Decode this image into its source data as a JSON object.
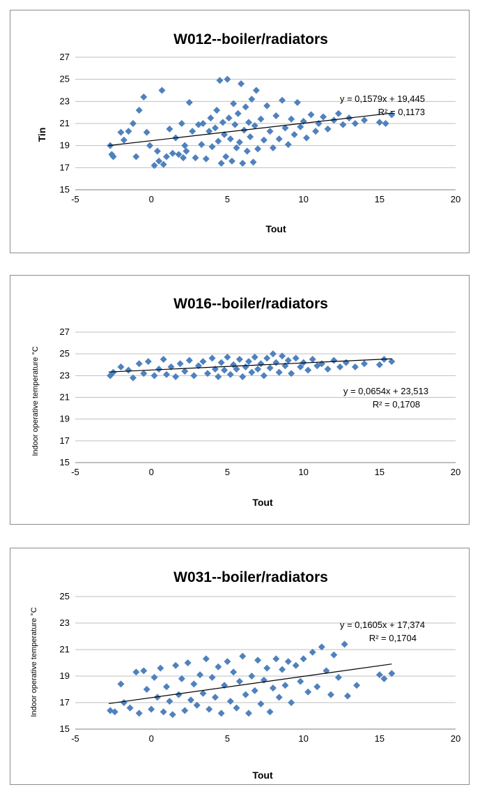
{
  "chart_data": [
    {
      "type": "scatter",
      "title": "W012--boiler/radiators",
      "xlabel": "Tout",
      "ylabel": "Tin",
      "xlim": [
        -5,
        20
      ],
      "ylim": [
        15,
        27
      ],
      "x_ticks": [
        "-5",
        "0",
        "5",
        "10",
        "15",
        "20"
      ],
      "y_ticks": [
        "15",
        "17",
        "19",
        "21",
        "23",
        "25",
        "27"
      ],
      "grid": "horizontal",
      "marker_color": "#4f81bd",
      "trendline": {
        "slope": 0.1579,
        "intercept": 19.445,
        "x_range": [
          -2.8,
          15.8
        ]
      },
      "equation": "y = 0,1579x + 19,445",
      "r_squared": "R² = 0,1173",
      "points": [
        [
          -2.7,
          19
        ],
        [
          -2.6,
          18.2
        ],
        [
          -2.5,
          18
        ],
        [
          -2,
          20.2
        ],
        [
          -1.8,
          19.5
        ],
        [
          -1.5,
          20.3
        ],
        [
          -1.2,
          21
        ],
        [
          -1,
          18
        ],
        [
          -0.8,
          22.2
        ],
        [
          -0.5,
          23.4
        ],
        [
          -0.3,
          20.2
        ],
        [
          -0.1,
          19
        ],
        [
          0.2,
          17.2
        ],
        [
          0.4,
          18.5
        ],
        [
          0.5,
          17.6
        ],
        [
          0.7,
          24
        ],
        [
          0.8,
          17.3
        ],
        [
          1,
          18
        ],
        [
          1.2,
          20.5
        ],
        [
          1.4,
          18.3
        ],
        [
          1.6,
          19.7
        ],
        [
          1.8,
          18.2
        ],
        [
          2,
          21
        ],
        [
          2.1,
          17.9
        ],
        [
          2.2,
          19
        ],
        [
          2.3,
          18.5
        ],
        [
          2.5,
          22.9
        ],
        [
          2.7,
          20.3
        ],
        [
          2.9,
          17.9
        ],
        [
          3.1,
          20.9
        ],
        [
          3.3,
          19.1
        ],
        [
          3.4,
          21
        ],
        [
          3.6,
          17.8
        ],
        [
          3.8,
          20.3
        ],
        [
          3.9,
          21.5
        ],
        [
          4,
          18.9
        ],
        [
          4.2,
          20.6
        ],
        [
          4.3,
          22.2
        ],
        [
          4.4,
          19.4
        ],
        [
          4.5,
          24.9
        ],
        [
          4.6,
          17.4
        ],
        [
          4.7,
          21.1
        ],
        [
          4.8,
          20
        ],
        [
          4.9,
          18
        ],
        [
          5,
          25
        ],
        [
          5.1,
          21.5
        ],
        [
          5.2,
          19.6
        ],
        [
          5.3,
          17.6
        ],
        [
          5.4,
          22.8
        ],
        [
          5.5,
          20.9
        ],
        [
          5.6,
          18.8
        ],
        [
          5.7,
          21.9
        ],
        [
          5.8,
          19.3
        ],
        [
          5.9,
          24.6
        ],
        [
          6,
          17.4
        ],
        [
          6.1,
          20.4
        ],
        [
          6.2,
          22.5
        ],
        [
          6.3,
          18.5
        ],
        [
          6.4,
          21.1
        ],
        [
          6.5,
          19.8
        ],
        [
          6.6,
          23.2
        ],
        [
          6.7,
          17.5
        ],
        [
          6.8,
          20.8
        ],
        [
          6.9,
          24
        ],
        [
          7,
          18.7
        ],
        [
          7.2,
          21.4
        ],
        [
          7.4,
          19.5
        ],
        [
          7.6,
          22.6
        ],
        [
          7.8,
          20.3
        ],
        [
          8,
          18.8
        ],
        [
          8.2,
          21.7
        ],
        [
          8.4,
          19.6
        ],
        [
          8.6,
          23.1
        ],
        [
          8.8,
          20.6
        ],
        [
          9,
          19.1
        ],
        [
          9.2,
          21.4
        ],
        [
          9.4,
          20
        ],
        [
          9.6,
          22.9
        ],
        [
          9.8,
          20.7
        ],
        [
          10,
          21.2
        ],
        [
          10.2,
          19.7
        ],
        [
          10.5,
          21.8
        ],
        [
          10.8,
          20.3
        ],
        [
          11,
          21
        ],
        [
          11.3,
          21.6
        ],
        [
          11.6,
          20.5
        ],
        [
          12,
          21.3
        ],
        [
          12.3,
          21.9
        ],
        [
          12.6,
          20.9
        ],
        [
          13,
          21.5
        ],
        [
          13.4,
          21
        ],
        [
          14,
          21.3
        ],
        [
          15,
          21.1
        ],
        [
          15.4,
          21
        ],
        [
          15.8,
          21.8
        ]
      ]
    },
    {
      "type": "scatter",
      "title": "W016--boiler/radiators",
      "xlabel": "Tout",
      "ylabel": "Indoor operative temperature °C",
      "xlim": [
        -5,
        20
      ],
      "ylim": [
        15,
        27
      ],
      "x_ticks": [
        "-5",
        "0",
        "5",
        "10",
        "15",
        "20"
      ],
      "y_ticks": [
        "15",
        "17",
        "19",
        "21",
        "23",
        "25",
        "27"
      ],
      "grid": "horizontal",
      "marker_color": "#4f81bd",
      "trendline": {
        "slope": 0.0654,
        "intercept": 23.513,
        "x_range": [
          -2.8,
          15.8
        ]
      },
      "equation": "y = 0,0654x + 23,513",
      "r_squared": "R² = 0,1708",
      "points": [
        [
          -2.7,
          23
        ],
        [
          -2.5,
          23.3
        ],
        [
          -2,
          23.8
        ],
        [
          -1.5,
          23.5
        ],
        [
          -1.2,
          22.8
        ],
        [
          -0.8,
          24.1
        ],
        [
          -0.5,
          23.2
        ],
        [
          -0.2,
          24.3
        ],
        [
          0.2,
          23
        ],
        [
          0.5,
          23.6
        ],
        [
          0.8,
          24.5
        ],
        [
          1,
          23.1
        ],
        [
          1.3,
          23.8
        ],
        [
          1.6,
          22.9
        ],
        [
          1.9,
          24.1
        ],
        [
          2.2,
          23.4
        ],
        [
          2.5,
          24.4
        ],
        [
          2.8,
          23
        ],
        [
          3.1,
          23.9
        ],
        [
          3.4,
          24.3
        ],
        [
          3.7,
          23.2
        ],
        [
          4,
          24.6
        ],
        [
          4.2,
          23.6
        ],
        [
          4.4,
          22.9
        ],
        [
          4.6,
          24.2
        ],
        [
          4.8,
          23.5
        ],
        [
          5,
          24.7
        ],
        [
          5.2,
          23.1
        ],
        [
          5.4,
          24
        ],
        [
          5.6,
          23.6
        ],
        [
          5.8,
          24.5
        ],
        [
          6,
          22.9
        ],
        [
          6.2,
          23.8
        ],
        [
          6.4,
          24.3
        ],
        [
          6.6,
          23.3
        ],
        [
          6.8,
          24.7
        ],
        [
          7,
          23.6
        ],
        [
          7.2,
          24.1
        ],
        [
          7.4,
          23
        ],
        [
          7.6,
          24.6
        ],
        [
          7.8,
          23.7
        ],
        [
          8,
          25
        ],
        [
          8.2,
          24.2
        ],
        [
          8.4,
          23.3
        ],
        [
          8.6,
          24.8
        ],
        [
          8.8,
          23.9
        ],
        [
          9,
          24.4
        ],
        [
          9.2,
          23.2
        ],
        [
          9.5,
          24.6
        ],
        [
          9.8,
          23.8
        ],
        [
          10,
          24.2
        ],
        [
          10.3,
          23.5
        ],
        [
          10.6,
          24.5
        ],
        [
          10.9,
          23.9
        ],
        [
          11.2,
          24.1
        ],
        [
          11.6,
          23.6
        ],
        [
          12,
          24.4
        ],
        [
          12.4,
          23.8
        ],
        [
          12.8,
          24.2
        ],
        [
          13.4,
          23.8
        ],
        [
          14,
          24.1
        ],
        [
          15,
          24
        ],
        [
          15.3,
          24.5
        ],
        [
          15.8,
          24.3
        ]
      ]
    },
    {
      "type": "scatter",
      "title": "W031--boiler/radiators",
      "xlabel": "Tout",
      "ylabel": "Indoor operative temperature °C",
      "xlim": [
        -5,
        20
      ],
      "ylim": [
        15,
        25
      ],
      "x_ticks": [
        "-5",
        "0",
        "5",
        "10",
        "15",
        "20"
      ],
      "y_ticks": [
        "15",
        "17",
        "19",
        "21",
        "23",
        "25"
      ],
      "grid": "horizontal",
      "marker_color": "#4f81bd",
      "trendline": {
        "slope": 0.1605,
        "intercept": 17.374,
        "x_range": [
          -2.8,
          15.8
        ]
      },
      "equation": "y = 0,1605x + 17,374",
      "r_squared": "R² = 0,1704",
      "points": [
        [
          -2.7,
          16.4
        ],
        [
          -2.4,
          16.3
        ],
        [
          -2,
          18.4
        ],
        [
          -1.8,
          17
        ],
        [
          -1.4,
          16.6
        ],
        [
          -1,
          19.3
        ],
        [
          -0.8,
          16.2
        ],
        [
          -0.5,
          19.4
        ],
        [
          -0.3,
          18
        ],
        [
          0,
          16.5
        ],
        [
          0.2,
          18.9
        ],
        [
          0.4,
          17.4
        ],
        [
          0.6,
          19.6
        ],
        [
          0.8,
          16.3
        ],
        [
          1,
          18.2
        ],
        [
          1.2,
          17.1
        ],
        [
          1.4,
          16.1
        ],
        [
          1.6,
          19.8
        ],
        [
          1.8,
          17.6
        ],
        [
          2,
          18.8
        ],
        [
          2.2,
          16.4
        ],
        [
          2.4,
          20
        ],
        [
          2.6,
          17.2
        ],
        [
          2.8,
          18.4
        ],
        [
          3,
          16.8
        ],
        [
          3.2,
          19.1
        ],
        [
          3.4,
          17.7
        ],
        [
          3.6,
          20.3
        ],
        [
          3.8,
          16.5
        ],
        [
          4,
          18.9
        ],
        [
          4.2,
          17.4
        ],
        [
          4.4,
          19.7
        ],
        [
          4.6,
          16.2
        ],
        [
          4.8,
          18.3
        ],
        [
          5,
          20.1
        ],
        [
          5.2,
          17.1
        ],
        [
          5.4,
          19.3
        ],
        [
          5.6,
          16.6
        ],
        [
          5.8,
          18.6
        ],
        [
          6,
          20.5
        ],
        [
          6.2,
          17.6
        ],
        [
          6.4,
          16.2
        ],
        [
          6.6,
          19
        ],
        [
          6.8,
          17.9
        ],
        [
          7,
          20.2
        ],
        [
          7.2,
          16.9
        ],
        [
          7.4,
          18.7
        ],
        [
          7.6,
          19.6
        ],
        [
          7.8,
          16.3
        ],
        [
          8,
          18.1
        ],
        [
          8.2,
          20.3
        ],
        [
          8.4,
          17.4
        ],
        [
          8.6,
          19.5
        ],
        [
          8.8,
          18.3
        ],
        [
          9,
          20.1
        ],
        [
          9.2,
          17
        ],
        [
          9.5,
          19.8
        ],
        [
          9.8,
          18.6
        ],
        [
          10,
          20.3
        ],
        [
          10.3,
          17.8
        ],
        [
          10.6,
          20.8
        ],
        [
          10.9,
          18.2
        ],
        [
          11.2,
          21.2
        ],
        [
          11.5,
          19.4
        ],
        [
          11.8,
          17.6
        ],
        [
          12,
          20.6
        ],
        [
          12.3,
          18.9
        ],
        [
          12.7,
          21.4
        ],
        [
          12.9,
          17.5
        ],
        [
          13.5,
          18.3
        ],
        [
          15,
          19.1
        ],
        [
          15.3,
          18.8
        ],
        [
          15.8,
          19.2
        ]
      ]
    }
  ]
}
